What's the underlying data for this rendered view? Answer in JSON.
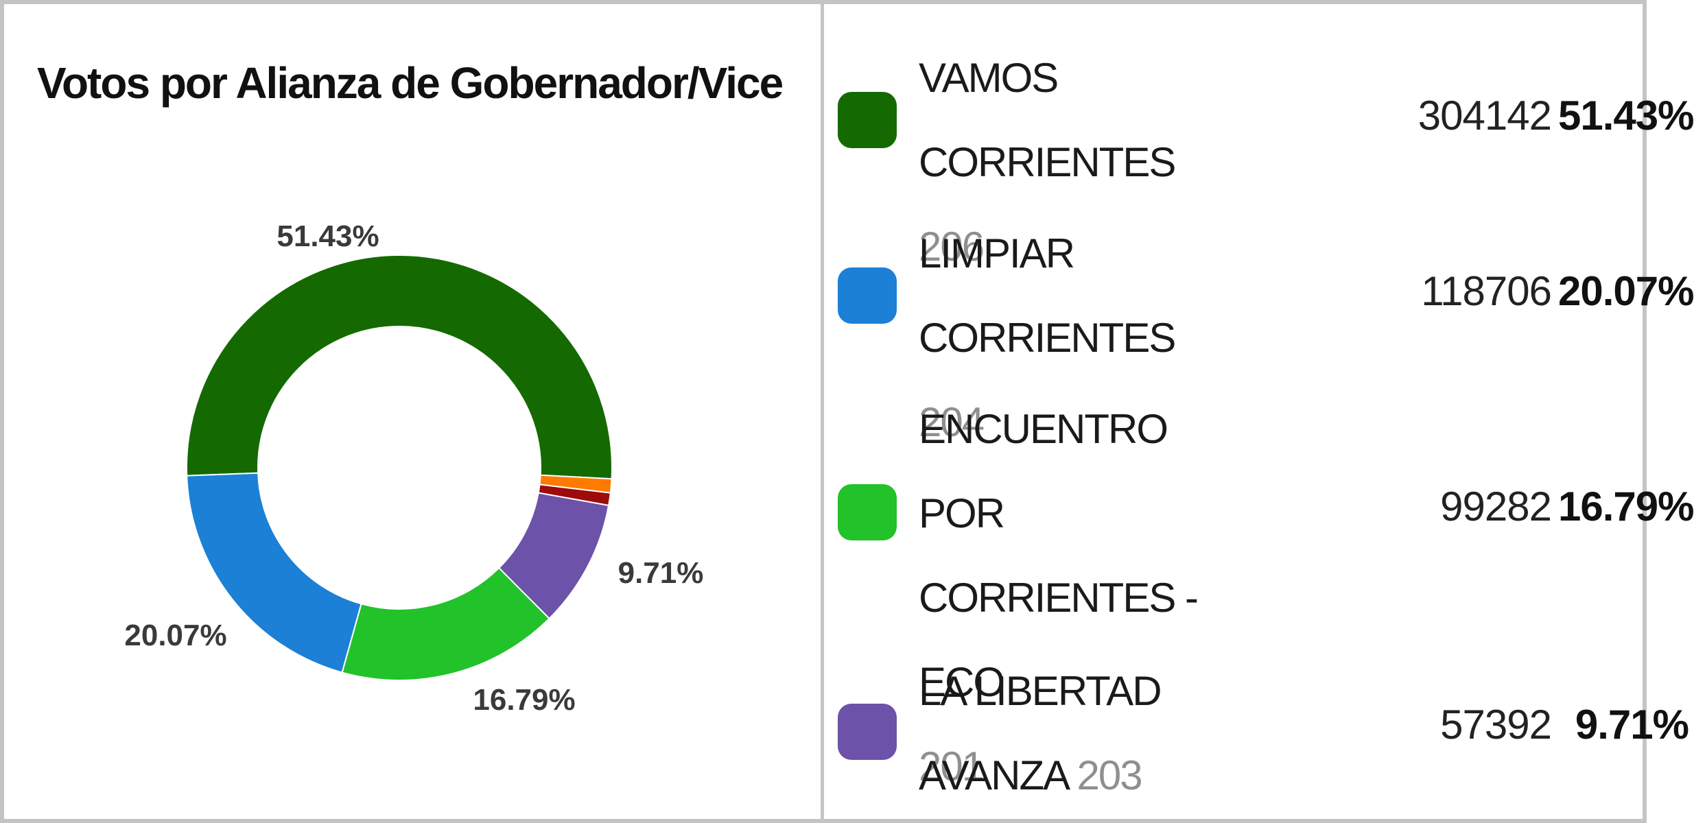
{
  "chart_data": {
    "type": "pie",
    "title": "Votos por Alianza de Gobernador/Vice",
    "style": "donut",
    "categories": [
      "VAMOS CORRIENTES",
      "LIMPIAR CORRIENTES",
      "ENCUENTRO POR CORRIENTES - ECO",
      "LA LIBERTAD AVANZA",
      "",
      ""
    ],
    "values": [
      51.43,
      20.07,
      16.79,
      9.71,
      0.95,
      1.05
    ],
    "colors": [
      "#146a00",
      "#1b80d6",
      "#22c22a",
      "#6c52a8",
      "#9e0b0b",
      "#ff7a00"
    ],
    "slice_labels": [
      "51.43%",
      "20.07%",
      "16.79%",
      "9.71%",
      "",
      ""
    ]
  },
  "legend": [
    {
      "name_line1": "VAMOS",
      "name_line2": "CORRIENTES",
      "name_line3": "",
      "code": "206",
      "votes": "304142",
      "pct": "51.43%",
      "color": "#146a00"
    },
    {
      "name_line1": "LIMPIAR",
      "name_line2": "CORRIENTES",
      "name_line3": "",
      "code": "204",
      "votes": "118706",
      "pct": "20.07%",
      "color": "#1b80d6"
    },
    {
      "name_line1": "ENCUENTRO POR",
      "name_line2": "CORRIENTES - ECO",
      "name_line3": "",
      "code": "201",
      "votes": "99282",
      "pct": "16.79%",
      "color": "#22c22a"
    },
    {
      "name_line1": "LA LIBERTAD",
      "name_line2": "AVANZA",
      "name_line3": "",
      "code": "203",
      "votes": "57392",
      "pct": "9.71%",
      "color": "#6c52a8"
    }
  ]
}
